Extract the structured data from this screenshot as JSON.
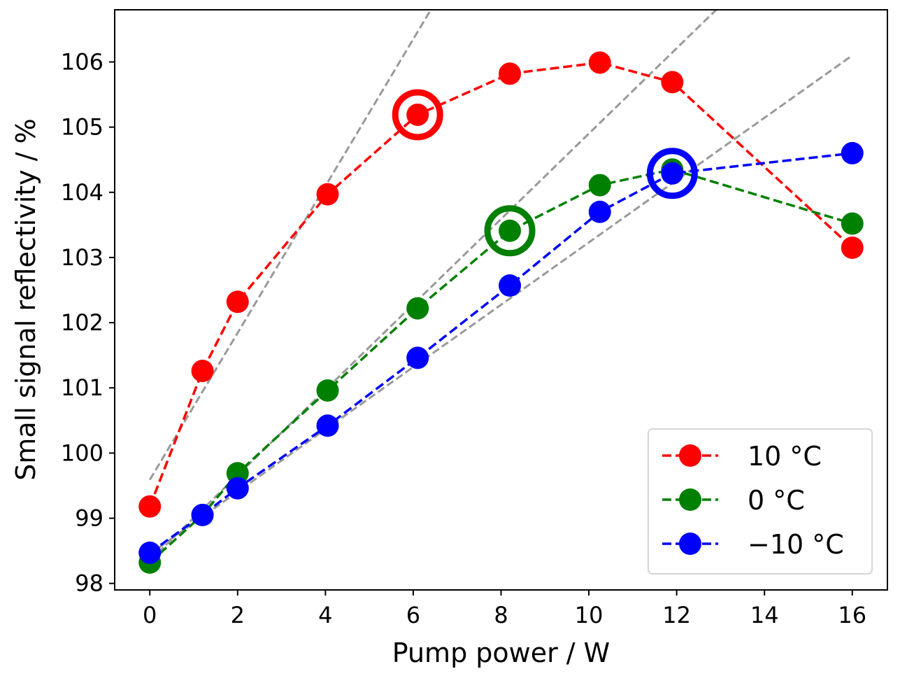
{
  "chart_data": {
    "type": "line",
    "xlabel": "Pump power / W",
    "ylabel": "Small signal reflectivity / %",
    "xlim": [
      -0.8,
      16.8
    ],
    "ylim": [
      97.9,
      106.8
    ],
    "xticks": [
      "0",
      "2",
      "4",
      "6",
      "8",
      "10",
      "12",
      "14",
      "16"
    ],
    "yticks": [
      "98",
      "99",
      "100",
      "101",
      "102",
      "103",
      "104",
      "105",
      "106"
    ],
    "grid": false,
    "legend_position": "lower-right",
    "series": [
      {
        "name": "10 °C",
        "color": "#ff0000",
        "x": [
          0,
          1.2,
          2.0,
          4.05,
          6.1,
          8.2,
          10.25,
          11.9,
          16
        ],
        "y": [
          99.18,
          101.26,
          102.32,
          103.97,
          105.19,
          105.82,
          105.99,
          105.69,
          103.15
        ],
        "highlight": {
          "x": 6.1,
          "y": 105.19
        }
      },
      {
        "name": "0 °C",
        "color": "#008000",
        "x": [
          0,
          1.2,
          2.0,
          4.05,
          6.1,
          8.2,
          10.25,
          11.9,
          16
        ],
        "y": [
          98.32,
          99.05,
          99.69,
          100.96,
          102.22,
          103.41,
          104.11,
          104.35,
          103.52
        ],
        "highlight": {
          "x": 8.2,
          "y": 103.41
        }
      },
      {
        "name": "−10 °C",
        "color": "#0000ff",
        "x": [
          0,
          1.2,
          2.0,
          4.05,
          6.1,
          8.2,
          10.25,
          11.9,
          16
        ],
        "y": [
          98.47,
          99.05,
          99.46,
          100.42,
          101.46,
          102.57,
          103.7,
          104.29,
          104.6
        ],
        "highlight": {
          "x": 11.9,
          "y": 104.29
        }
      }
    ],
    "fit_lines": [
      {
        "color": "#999999",
        "x": [
          0,
          6.4
        ],
        "y": [
          99.59,
          106.8
        ]
      },
      {
        "color": "#999999",
        "x": [
          0,
          12.9
        ],
        "y": [
          98.35,
          106.8
        ]
      },
      {
        "color": "#999999",
        "x": [
          0,
          16
        ],
        "y": [
          98.45,
          106.1
        ]
      }
    ]
  }
}
